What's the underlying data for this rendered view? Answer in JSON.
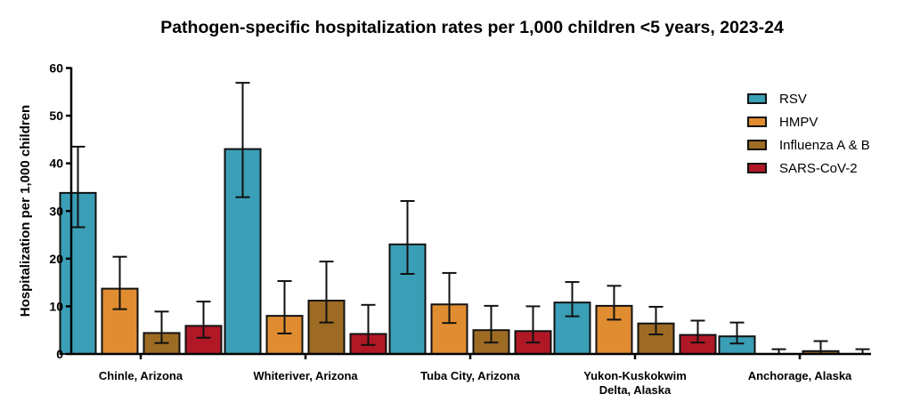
{
  "chart_data": {
    "type": "bar",
    "title": "Pathogen-specific hospitalization rates per 1,000 children <5 years, 2023-24",
    "xlabel": "",
    "ylabel": "Hospitalization per 1,000 children",
    "ylim": [
      0,
      60
    ],
    "yticks": [
      0,
      10,
      20,
      30,
      40,
      50,
      60
    ],
    "grid": false,
    "legend_position": "top-right",
    "categories": [
      [
        "Chinle, Arizona"
      ],
      [
        "Whiteriver, Arizona"
      ],
      [
        "Tuba City, Arizona"
      ],
      [
        "Yukon-Kuskokwim",
        "Delta, Alaska"
      ],
      [
        "Anchorage, Alaska"
      ]
    ],
    "series": [
      {
        "name": "RSV",
        "color": "#3a9fb6",
        "values": [
          33.8,
          43.0,
          23.0,
          10.8,
          3.7
        ],
        "err_low": [
          26.6,
          32.9,
          16.8,
          7.9,
          2.2
        ],
        "err_high": [
          43.5,
          56.9,
          32.1,
          15.1,
          6.6
        ]
      },
      {
        "name": "HMPV",
        "color": "#e08d31",
        "values": [
          13.7,
          8.0,
          10.4,
          10.1,
          0.0
        ],
        "err_low": [
          9.4,
          4.3,
          6.5,
          7.2,
          0.0
        ],
        "err_high": [
          20.4,
          15.3,
          17.0,
          14.3,
          1.0
        ]
      },
      {
        "name": "Influenza A & B",
        "color": "#9d6b24",
        "values": [
          4.4,
          11.2,
          5.0,
          6.4,
          0.6
        ],
        "err_low": [
          2.3,
          6.6,
          2.4,
          4.1,
          0.0
        ],
        "err_high": [
          8.9,
          19.4,
          10.1,
          9.9,
          2.7
        ]
      },
      {
        "name": "SARS-CoV-2",
        "color": "#b01826",
        "values": [
          5.9,
          4.2,
          4.8,
          4.0,
          0.0
        ],
        "err_low": [
          3.4,
          1.9,
          2.4,
          2.4,
          0.0
        ],
        "err_high": [
          11.0,
          10.3,
          10.0,
          7.0,
          1.0
        ]
      }
    ]
  }
}
